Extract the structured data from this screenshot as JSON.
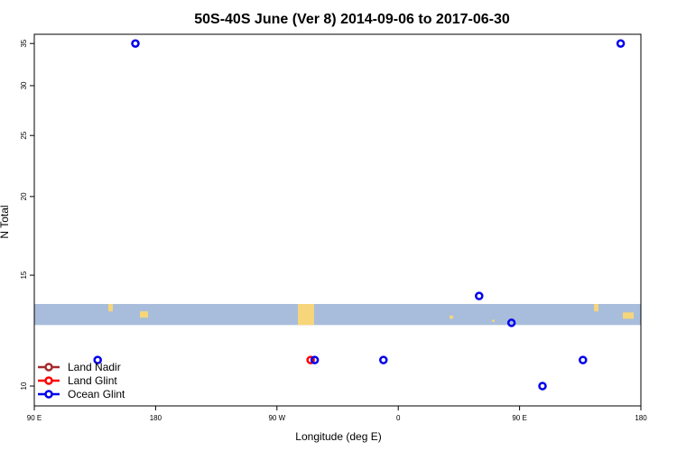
{
  "chart_data": {
    "type": "scatter",
    "title": "50S-40S June (Ver 8)   2014-09-06 to 2017-06-30",
    "xlabel": "Longitude (deg E)",
    "ylabel": "N Total",
    "x_ticks": [
      {
        "value": 0,
        "label": "90 E"
      },
      {
        "value": 90,
        "label": "180"
      },
      {
        "value": 180,
        "label": "90 W"
      },
      {
        "value": 270,
        "label": "0"
      },
      {
        "value": 360,
        "label": "90 E"
      },
      {
        "value": 450,
        "label": "180"
      }
    ],
    "y_ticks": [
      10,
      15,
      20,
      25,
      30,
      35
    ],
    "xlim": [
      0,
      450
    ],
    "ylim": [
      9.3,
      36.2
    ],
    "y_scale": "log",
    "legend_position": "bottom-left",
    "series": [
      {
        "name": "Land Nadir",
        "color": "#a52a2a",
        "points": []
      },
      {
        "name": "Land Glint",
        "color": "#ff0000",
        "points": [
          [
            205,
            11
          ]
        ]
      },
      {
        "name": "Ocean Glint",
        "color": "#0000ee",
        "points": [
          [
            75,
            35
          ],
          [
            435,
            35
          ],
          [
            330,
            13.9
          ],
          [
            354,
            12.6
          ],
          [
            47,
            11
          ],
          [
            208,
            11
          ],
          [
            259,
            11
          ],
          [
            407,
            11
          ],
          [
            377,
            10
          ]
        ]
      }
    ],
    "background_band": {
      "y_range": [
        12.5,
        13.5
      ],
      "color": "#a7bddb",
      "land_color": "#f7d57a"
    }
  }
}
